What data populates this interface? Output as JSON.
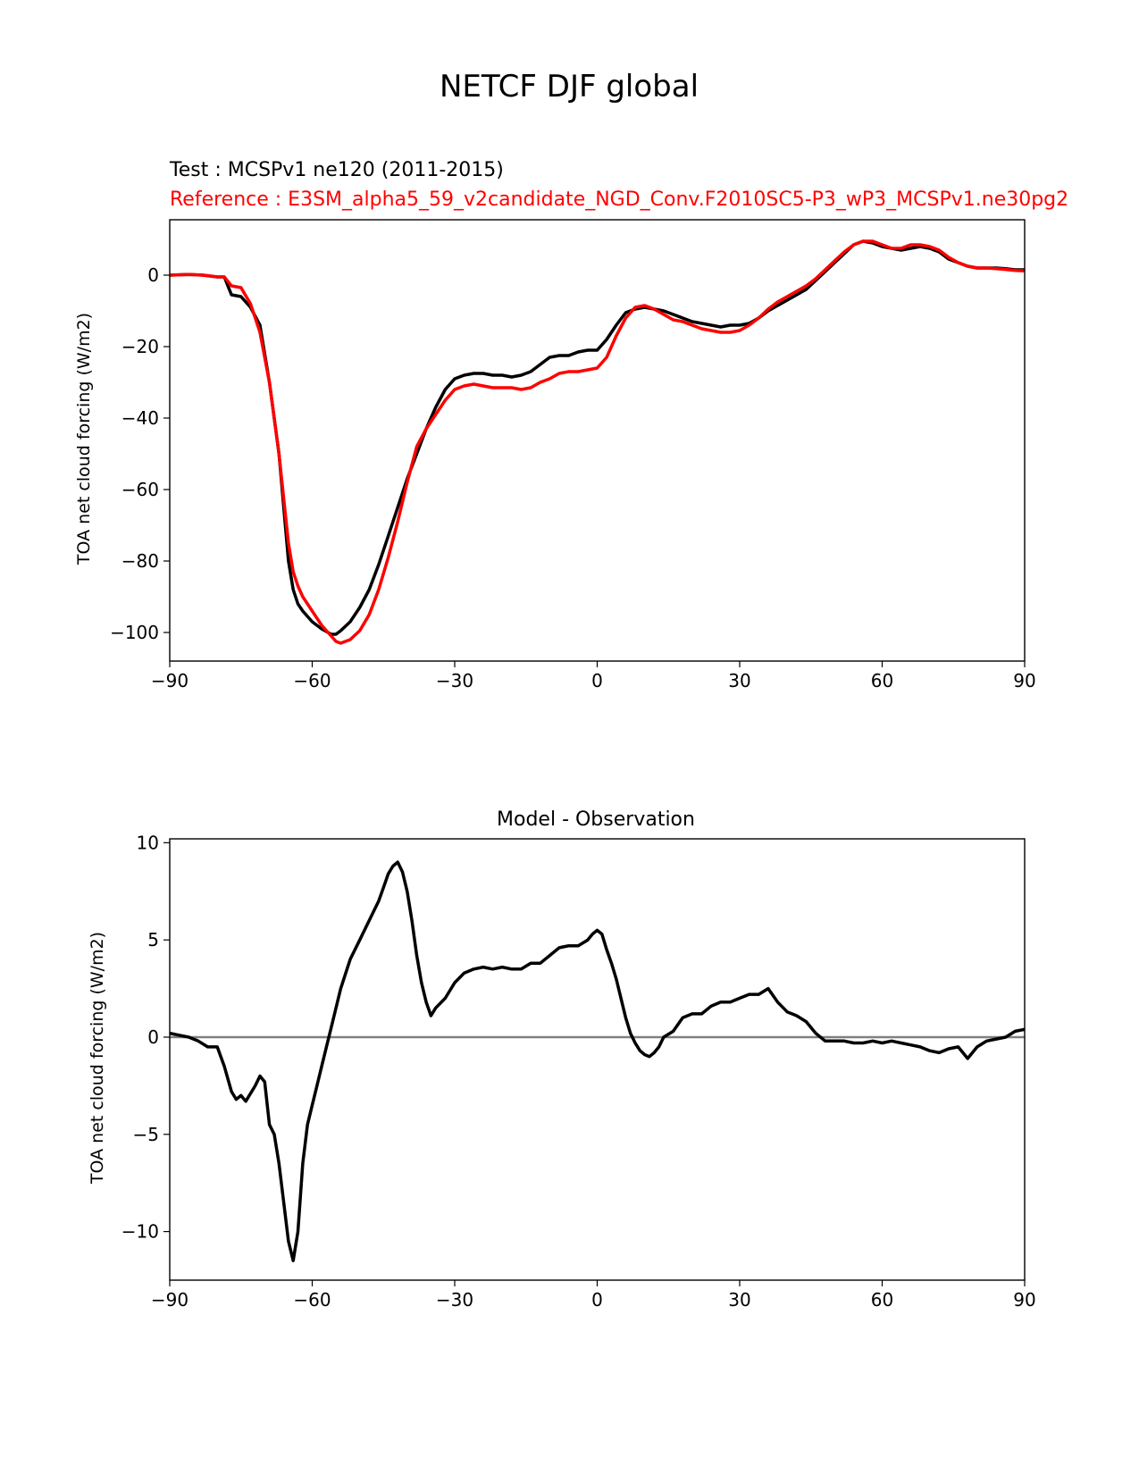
{
  "figure": {
    "suptitle": "NETCF DJF global"
  },
  "chart_data": [
    {
      "type": "line",
      "title_test": "Test : MCSPv1 ne120 (2011-2015)",
      "title_ref": "Reference : E3SM_alpha5_59_v2candidate_NGD_Conv.F2010SC5-P3_wP3_MCSPv1.ne30pg2",
      "xlabel": "",
      "ylabel": "TOA net cloud forcing (W/m2)",
      "xlim": [
        -90,
        90
      ],
      "ylim": [
        -108,
        15.5
      ],
      "xticks": [
        -90,
        -60,
        -30,
        0,
        30,
        60,
        90
      ],
      "yticks": [
        0,
        -20,
        -40,
        -60,
        -80,
        -100
      ],
      "grid": false,
      "colors": {
        "test": "#000000",
        "reference": "#ff0000"
      },
      "series": [
        {
          "color": "#000000",
          "x": [
            -90,
            -86,
            -83,
            -80,
            -78.5,
            -77,
            -75,
            -73,
            -71,
            -69,
            -67,
            -65,
            -64,
            -63,
            -62,
            -60,
            -58,
            -56,
            -55,
            -54,
            -52,
            -50,
            -48,
            -46,
            -44,
            -42,
            -40,
            -38,
            -36,
            -34,
            -32,
            -30,
            -28,
            -26,
            -24,
            -22,
            -20,
            -18,
            -16,
            -14,
            -12,
            -10,
            -8,
            -6,
            -4,
            -2,
            0,
            2,
            4,
            6,
            8,
            10,
            12,
            14,
            16,
            18,
            20,
            22,
            24,
            26,
            28,
            30,
            32,
            34,
            36,
            38,
            40,
            42,
            44,
            46,
            48,
            50,
            52,
            54,
            56,
            58,
            60,
            62,
            64,
            66,
            68,
            70,
            72,
            74,
            76,
            78,
            80,
            82,
            84,
            86,
            88,
            90
          ],
          "y": [
            0,
            0.2,
            0,
            -0.5,
            -0.5,
            -5.5,
            -6,
            -9,
            -14,
            -30,
            -50,
            -80,
            -88,
            -92,
            -94,
            -97,
            -99,
            -100.5,
            -100.5,
            -99.5,
            -97,
            -93,
            -88,
            -81,
            -73,
            -65,
            -57,
            -50,
            -43,
            -37,
            -32,
            -29,
            -28,
            -27.5,
            -27.5,
            -28,
            -28,
            -28.5,
            -28,
            -27,
            -25,
            -23,
            -22.5,
            -22.5,
            -21.5,
            -21,
            -21,
            -18,
            -14,
            -10.5,
            -9.5,
            -9,
            -9.5,
            -10,
            -11,
            -12,
            -13,
            -13.5,
            -14,
            -14.5,
            -14,
            -14,
            -13.5,
            -12,
            -10,
            -8.5,
            -7,
            -5.5,
            -4,
            -1.5,
            1,
            3.5,
            6,
            8.5,
            9.5,
            9,
            8,
            7.5,
            7,
            7.5,
            8,
            7.5,
            6.5,
            4.5,
            3.5,
            2.5,
            2,
            2,
            2,
            1.8,
            1.5,
            1.5
          ]
        },
        {
          "color": "#ff0000",
          "x": [
            -90,
            -86,
            -83,
            -80,
            -78.5,
            -77,
            -75,
            -73,
            -71,
            -69,
            -67,
            -65,
            -64,
            -63,
            -62,
            -60,
            -58,
            -56,
            -55,
            -54,
            -52,
            -50,
            -48,
            -46,
            -44,
            -42,
            -40,
            -38,
            -36,
            -34,
            -32,
            -30,
            -28,
            -26,
            -24,
            -22,
            -20,
            -18,
            -16,
            -14,
            -12,
            -10,
            -8,
            -6,
            -4,
            -2,
            0,
            2,
            4,
            6,
            8,
            10,
            12,
            14,
            16,
            18,
            20,
            22,
            24,
            26,
            28,
            30,
            32,
            34,
            36,
            38,
            40,
            42,
            44,
            46,
            48,
            50,
            52,
            54,
            56,
            58,
            60,
            62,
            64,
            66,
            68,
            70,
            72,
            74,
            76,
            78,
            80,
            82,
            84,
            86,
            88,
            90
          ],
          "y": [
            0,
            0.2,
            0,
            -0.5,
            -0.5,
            -3,
            -3.5,
            -8,
            -16,
            -30,
            -50,
            -75,
            -83,
            -87,
            -90,
            -94,
            -98,
            -101,
            -102.5,
            -103,
            -102,
            -99.5,
            -95,
            -88,
            -79,
            -69,
            -58,
            -48,
            -43,
            -39,
            -35,
            -32,
            -31,
            -30.5,
            -31,
            -31.5,
            -31.5,
            -31.5,
            -32,
            -31.5,
            -30,
            -29,
            -27.5,
            -27,
            -27,
            -26.5,
            -26,
            -23,
            -17,
            -12,
            -9,
            -8.5,
            -9.5,
            -11,
            -12.5,
            -13,
            -14,
            -15,
            -15.5,
            -16,
            -16,
            -15.5,
            -14,
            -12,
            -9.5,
            -7.5,
            -6,
            -4.5,
            -3,
            -1,
            1.5,
            4,
            6.5,
            8.5,
            9.5,
            9.5,
            8.5,
            7.5,
            7.5,
            8.5,
            8.5,
            8,
            7,
            5,
            3.5,
            2.5,
            2,
            2,
            1.8,
            1.6,
            1.3,
            1.2
          ]
        }
      ]
    },
    {
      "type": "line",
      "title": "Model - Observation",
      "xlabel": "",
      "ylabel": "TOA net cloud forcing (W/m2)",
      "xlim": [
        -90,
        90
      ],
      "ylim": [
        -12.5,
        10.2
      ],
      "xticks": [
        -90,
        -60,
        -30,
        0,
        30,
        60,
        90
      ],
      "yticks": [
        10,
        5,
        0,
        -5,
        -10
      ],
      "grid": false,
      "zero_line_color": "#808080",
      "series": [
        {
          "color": "#000000",
          "x": [
            -90,
            -88,
            -86,
            -84,
            -82,
            -80,
            -78.5,
            -77,
            -76,
            -75,
            -74,
            -72,
            -71,
            -70,
            -69,
            -68,
            -67,
            -66,
            -65,
            -64,
            -63,
            -62,
            -61,
            -60,
            -59,
            -58,
            -57,
            -56,
            -55,
            -54,
            -52,
            -50,
            -48,
            -46,
            -45,
            -44,
            -43,
            -42,
            -41,
            -40,
            -39,
            -38,
            -37,
            -36,
            -35,
            -34,
            -32,
            -30,
            -28,
            -26,
            -24,
            -22,
            -20,
            -18,
            -16,
            -14,
            -12,
            -10,
            -8,
            -6,
            -4,
            -2,
            -1,
            0,
            1,
            2,
            3,
            4,
            5,
            6,
            7,
            8,
            9,
            10,
            11,
            12,
            13,
            14,
            16,
            18,
            20,
            22,
            24,
            26,
            28,
            30,
            32,
            34,
            36,
            38,
            40,
            42,
            44,
            46,
            48,
            50,
            52,
            54,
            56,
            58,
            60,
            62,
            64,
            66,
            68,
            70,
            72,
            74,
            76,
            78,
            80,
            82,
            84,
            86,
            88,
            90
          ],
          "y": [
            0.2,
            0.1,
            0,
            -0.2,
            -0.5,
            -0.5,
            -1.5,
            -2.8,
            -3.2,
            -3,
            -3.3,
            -2.5,
            -2,
            -2.3,
            -4.5,
            -5,
            -6.5,
            -8.5,
            -10.5,
            -11.5,
            -10,
            -6.5,
            -4.5,
            -3.5,
            -2.5,
            -1.5,
            -0.5,
            0.5,
            1.5,
            2.5,
            4,
            5,
            6,
            7,
            7.7,
            8.4,
            8.8,
            9,
            8.5,
            7.5,
            6,
            4.2,
            2.8,
            1.8,
            1.1,
            1.5,
            2,
            2.8,
            3.3,
            3.5,
            3.6,
            3.5,
            3.6,
            3.5,
            3.5,
            3.8,
            3.8,
            4.2,
            4.6,
            4.7,
            4.7,
            5,
            5.3,
            5.5,
            5.3,
            4.5,
            3.8,
            3,
            2,
            1,
            0.2,
            -0.3,
            -0.7,
            -0.9,
            -1,
            -0.8,
            -0.5,
            0,
            0.3,
            1,
            1.2,
            1.2,
            1.6,
            1.8,
            1.8,
            2,
            2.2,
            2.2,
            2.5,
            1.8,
            1.3,
            1.1,
            0.8,
            0.2,
            -0.2,
            -0.2,
            -0.2,
            -0.3,
            -0.3,
            -0.2,
            -0.3,
            -0.2,
            -0.3,
            -0.4,
            -0.5,
            -0.7,
            -0.8,
            -0.6,
            -0.5,
            -1.1,
            -0.5,
            -0.2,
            -0.1,
            0,
            0.3,
            0.4
          ]
        }
      ]
    }
  ]
}
